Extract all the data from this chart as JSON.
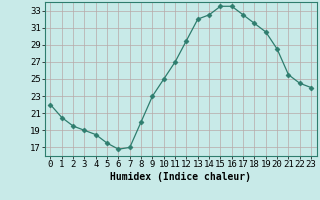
{
  "x": [
    0,
    1,
    2,
    3,
    4,
    5,
    6,
    7,
    8,
    9,
    10,
    11,
    12,
    13,
    14,
    15,
    16,
    17,
    18,
    19,
    20,
    21,
    22,
    23
  ],
  "y": [
    22,
    20.5,
    19.5,
    19,
    18.5,
    17.5,
    16.8,
    17,
    20,
    23,
    25,
    27,
    29.5,
    32,
    32.5,
    33.5,
    33.5,
    32.5,
    31.5,
    30.5,
    28.5,
    25.5,
    24.5,
    24
  ],
  "line_color": "#2e7d6e",
  "marker": "D",
  "marker_size": 2.5,
  "bg_color": "#c8eae8",
  "grid_color": "#b8a8a8",
  "xlabel": "Humidex (Indice chaleur)",
  "xlabel_fontsize": 7,
  "tick_fontsize": 6.5,
  "ylim": [
    16,
    34
  ],
  "yticks": [
    17,
    19,
    21,
    23,
    25,
    27,
    29,
    31,
    33
  ],
  "xlim": [
    -0.5,
    23.5
  ],
  "xticks": [
    0,
    1,
    2,
    3,
    4,
    5,
    6,
    7,
    8,
    9,
    10,
    11,
    12,
    13,
    14,
    15,
    16,
    17,
    18,
    19,
    20,
    21,
    22,
    23
  ]
}
